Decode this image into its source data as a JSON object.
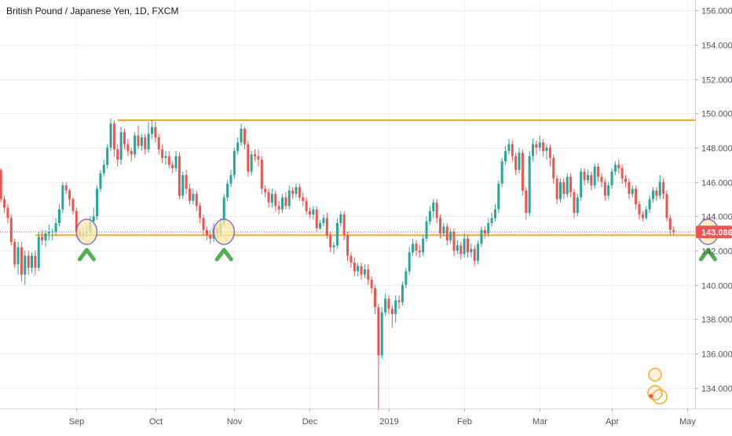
{
  "title": "British Pound / Japanese Yen, 1D, FXCM",
  "colors": {
    "up": "#26a69a",
    "down": "#ef5350",
    "level": "#f5a623",
    "price_line": "#ef5350",
    "grid": "#eef0f3",
    "axis_text": "#50535e",
    "marker": "#4caf50",
    "circle_fill": "#fce8a6",
    "circle_stroke": "#7b6fd0"
  },
  "last_price_label": "143.086",
  "chart_data": {
    "type": "candlestick",
    "title": "British Pound / Japanese Yen, 1D, FXCM",
    "ylim": [
      132.8,
      156.6
    ],
    "y_ticks": [
      "134.000",
      "136.000",
      "138.000",
      "140.000",
      "142.000",
      "144.000",
      "146.000",
      "148.000",
      "150.000",
      "152.000",
      "154.000",
      "156.000"
    ],
    "y_tick_values": [
      134,
      136,
      138,
      140,
      142,
      144,
      146,
      148,
      150,
      152,
      154,
      156
    ],
    "x_ticks": [
      "Sep",
      "Oct",
      "Nov",
      "Dec",
      "2019",
      "Feb",
      "Mar",
      "Apr",
      "May"
    ],
    "x_tick_days": [
      22,
      45,
      68,
      90,
      113,
      135,
      157,
      178,
      200
    ],
    "grid": true,
    "last_price": 143.086,
    "levels": [
      {
        "name": "resistance",
        "value": 149.6,
        "from_day": 34
      },
      {
        "name": "support",
        "value": 142.9,
        "from_day": 10
      }
    ],
    "touch_points": [
      {
        "day": 25,
        "price": 143.0
      },
      {
        "day": 65,
        "price": 143.0
      },
      {
        "day": 206,
        "price": 143.0
      }
    ],
    "candles": [
      [
        146.7,
        145.0,
        146.8,
        144.8
      ],
      [
        145.0,
        144.5,
        145.2,
        144.2
      ],
      [
        144.5,
        143.9,
        144.7,
        143.6
      ],
      [
        143.9,
        142.5,
        144.1,
        142.3
      ],
      [
        142.5,
        141.2,
        142.7,
        141.0
      ],
      [
        141.2,
        142.2,
        142.5,
        140.6
      ],
      [
        142.2,
        140.6,
        142.5,
        140.2
      ],
      [
        140.6,
        141.7,
        142.0,
        140.0
      ],
      [
        141.7,
        141.0,
        142.0,
        140.6
      ],
      [
        141.0,
        141.7,
        141.9,
        140.7
      ],
      [
        141.7,
        141.0,
        142.0,
        140.6
      ],
      [
        141.0,
        142.8,
        143.1,
        140.8
      ],
      [
        142.8,
        142.6,
        143.2,
        142.3
      ],
      [
        142.6,
        143.0,
        143.2,
        142.2
      ],
      [
        143.0,
        143.1,
        143.5,
        142.6
      ],
      [
        143.1,
        143.1,
        143.3,
        142.6
      ],
      [
        143.1,
        143.6,
        143.9,
        142.9
      ],
      [
        143.6,
        144.4,
        144.7,
        143.4
      ],
      [
        144.4,
        145.8,
        146.0,
        144.2
      ],
      [
        145.8,
        145.5,
        146.0,
        145.3
      ],
      [
        145.5,
        145.0,
        145.6,
        144.6
      ],
      [
        145.0,
        144.3,
        145.1,
        144.1
      ],
      [
        144.3,
        143.1,
        144.5,
        142.8
      ],
      [
        143.1,
        142.9,
        143.3,
        142.6
      ],
      [
        142.9,
        143.0,
        143.3,
        142.6
      ],
      [
        143.0,
        143.1,
        143.5,
        142.8
      ],
      [
        143.1,
        143.7,
        144.0,
        142.9
      ],
      [
        143.7,
        144.0,
        144.5,
        143.5
      ],
      [
        144.0,
        145.6,
        145.8,
        143.8
      ],
      [
        145.6,
        146.5,
        146.7,
        145.4
      ],
      [
        146.5,
        147.0,
        147.3,
        146.3
      ],
      [
        147.0,
        148.0,
        148.2,
        146.8
      ],
      [
        148.0,
        149.4,
        149.7,
        147.8
      ],
      [
        149.4,
        147.9,
        149.6,
        147.5
      ],
      [
        147.9,
        147.3,
        148.2,
        146.9
      ],
      [
        147.3,
        148.9,
        149.2,
        147.0
      ],
      [
        148.9,
        148.2,
        149.1,
        147.9
      ],
      [
        148.2,
        147.8,
        148.5,
        147.5
      ],
      [
        147.8,
        147.6,
        148.0,
        147.2
      ],
      [
        147.6,
        148.7,
        148.9,
        147.4
      ],
      [
        148.7,
        148.1,
        149.3,
        147.9
      ],
      [
        148.1,
        148.6,
        148.8,
        147.8
      ],
      [
        148.6,
        147.9,
        148.8,
        147.6
      ],
      [
        147.9,
        148.8,
        149.5,
        147.7
      ],
      [
        148.8,
        149.2,
        149.6,
        148.5
      ],
      [
        149.2,
        148.6,
        149.5,
        148.3
      ],
      [
        148.6,
        147.9,
        148.8,
        147.6
      ],
      [
        147.9,
        147.4,
        148.2,
        147.1
      ],
      [
        147.4,
        147.5,
        147.8,
        147.0
      ],
      [
        147.5,
        147.0,
        147.8,
        146.8
      ],
      [
        147.0,
        146.8,
        147.2,
        146.5
      ],
      [
        146.8,
        147.5,
        147.8,
        146.6
      ],
      [
        147.5,
        145.2,
        147.7,
        145.0
      ],
      [
        145.2,
        146.4,
        146.6,
        145.0
      ],
      [
        146.4,
        145.6,
        146.7,
        145.3
      ],
      [
        145.6,
        144.9,
        145.9,
        144.7
      ],
      [
        144.9,
        145.3,
        145.6,
        144.7
      ],
      [
        145.3,
        144.6,
        145.5,
        144.3
      ],
      [
        144.6,
        143.9,
        144.8,
        143.6
      ],
      [
        143.9,
        143.2,
        144.1,
        142.9
      ],
      [
        143.2,
        142.9,
        143.4,
        142.6
      ],
      [
        142.9,
        142.7,
        143.2,
        142.4
      ],
      [
        142.7,
        143.3,
        143.6,
        142.5
      ],
      [
        143.3,
        143.0,
        143.5,
        142.7
      ],
      [
        143.0,
        143.6,
        143.9,
        142.8
      ],
      [
        143.6,
        145.1,
        145.3,
        143.4
      ],
      [
        145.1,
        145.9,
        146.1,
        144.9
      ],
      [
        145.9,
        146.4,
        146.7,
        145.7
      ],
      [
        146.4,
        147.8,
        148.0,
        146.2
      ],
      [
        147.8,
        148.3,
        148.6,
        147.6
      ],
      [
        148.3,
        149.1,
        149.4,
        148.1
      ],
      [
        149.1,
        148.2,
        149.2,
        147.9
      ],
      [
        148.2,
        146.6,
        148.4,
        146.3
      ],
      [
        146.6,
        147.6,
        147.8,
        146.4
      ],
      [
        147.6,
        147.5,
        147.9,
        147.2
      ],
      [
        147.5,
        147.3,
        147.9,
        146.9
      ],
      [
        147.3,
        145.6,
        147.5,
        145.3
      ],
      [
        145.6,
        145.4,
        145.8,
        145.1
      ],
      [
        145.4,
        144.8,
        145.6,
        144.5
      ],
      [
        144.8,
        145.3,
        145.6,
        144.5
      ],
      [
        145.3,
        144.6,
        145.5,
        144.3
      ],
      [
        144.6,
        144.4,
        144.9,
        144.1
      ],
      [
        144.4,
        145.1,
        145.3,
        144.2
      ],
      [
        145.1,
        144.6,
        145.4,
        144.4
      ],
      [
        144.6,
        145.5,
        145.8,
        144.4
      ],
      [
        145.5,
        145.3,
        145.7,
        145.0
      ],
      [
        145.3,
        145.7,
        145.9,
        145.1
      ],
      [
        145.7,
        145.1,
        145.9,
        144.9
      ],
      [
        145.1,
        144.9,
        145.4,
        144.6
      ],
      [
        144.9,
        144.3,
        145.1,
        144.1
      ],
      [
        144.3,
        144.1,
        144.5,
        143.9
      ],
      [
        144.1,
        144.4,
        144.6,
        143.8
      ],
      [
        144.4,
        143.3,
        144.6,
        143.1
      ],
      [
        143.3,
        143.6,
        143.8,
        143.2
      ],
      [
        143.6,
        143.9,
        144.1,
        143.4
      ],
      [
        143.9,
        142.9,
        144.2,
        142.7
      ],
      [
        142.9,
        142.2,
        143.1,
        141.9
      ],
      [
        142.2,
        142.3,
        142.5,
        141.8
      ],
      [
        142.3,
        143.6,
        143.9,
        142.1
      ],
      [
        143.6,
        144.1,
        144.3,
        143.4
      ],
      [
        144.1,
        142.9,
        144.3,
        142.6
      ],
      [
        142.9,
        141.7,
        143.1,
        141.4
      ],
      [
        141.7,
        141.3,
        141.9,
        141.0
      ],
      [
        141.3,
        140.8,
        141.6,
        140.5
      ],
      [
        140.8,
        141.1,
        141.3,
        140.5
      ],
      [
        141.1,
        140.6,
        141.3,
        140.3
      ],
      [
        140.6,
        140.9,
        141.2,
        140.4
      ],
      [
        140.9,
        140.3,
        141.2,
        140.0
      ],
      [
        140.3,
        139.8,
        140.5,
        139.5
      ],
      [
        139.8,
        138.7,
        140.0,
        138.3
      ],
      [
        138.7,
        135.9,
        138.9,
        132.7
      ],
      [
        135.9,
        138.4,
        138.7,
        135.7
      ],
      [
        138.4,
        139.2,
        139.5,
        138.2
      ],
      [
        139.2,
        138.6,
        139.4,
        138.3
      ],
      [
        138.6,
        138.3,
        138.8,
        137.5
      ],
      [
        138.3,
        139.1,
        139.4,
        137.8
      ],
      [
        139.1,
        139.0,
        139.4,
        138.6
      ],
      [
        139.0,
        140.0,
        140.2,
        138.8
      ],
      [
        140.0,
        140.8,
        141.0,
        139.8
      ],
      [
        140.8,
        141.9,
        142.2,
        140.6
      ],
      [
        141.9,
        142.4,
        142.7,
        141.7
      ],
      [
        142.4,
        142.0,
        142.6,
        141.7
      ],
      [
        142.0,
        141.9,
        142.3,
        141.6
      ],
      [
        141.9,
        142.7,
        142.9,
        141.7
      ],
      [
        142.7,
        143.7,
        144.0,
        142.5
      ],
      [
        143.7,
        144.3,
        144.6,
        143.5
      ],
      [
        144.3,
        144.8,
        145.0,
        143.9
      ],
      [
        144.8,
        143.9,
        145.0,
        143.6
      ],
      [
        143.9,
        143.0,
        144.1,
        142.7
      ],
      [
        143.0,
        143.4,
        143.6,
        142.8
      ],
      [
        143.4,
        142.6,
        143.6,
        142.3
      ],
      [
        142.6,
        143.1,
        143.3,
        142.4
      ],
      [
        143.1,
        142.0,
        143.3,
        141.7
      ],
      [
        142.0,
        142.3,
        142.6,
        141.8
      ],
      [
        142.3,
        141.8,
        142.5,
        141.5
      ],
      [
        141.8,
        142.7,
        143.0,
        141.6
      ],
      [
        142.7,
        141.9,
        142.9,
        141.6
      ],
      [
        141.9,
        142.1,
        142.4,
        141.6
      ],
      [
        142.1,
        141.4,
        142.3,
        141.1
      ],
      [
        141.4,
        142.4,
        142.6,
        141.2
      ],
      [
        142.4,
        143.2,
        143.4,
        142.2
      ],
      [
        143.2,
        143.0,
        143.4,
        142.7
      ],
      [
        143.0,
        143.6,
        143.9,
        142.8
      ],
      [
        143.6,
        143.9,
        144.2,
        143.4
      ],
      [
        143.9,
        144.4,
        144.7,
        143.7
      ],
      [
        144.4,
        145.9,
        146.1,
        144.2
      ],
      [
        145.9,
        147.2,
        147.4,
        145.7
      ],
      [
        147.2,
        147.8,
        148.1,
        147.0
      ],
      [
        147.8,
        148.2,
        148.5,
        147.6
      ],
      [
        148.2,
        147.5,
        148.4,
        147.2
      ],
      [
        147.5,
        146.7,
        147.7,
        146.4
      ],
      [
        146.7,
        147.7,
        148.0,
        146.5
      ],
      [
        147.7,
        145.5,
        147.9,
        145.2
      ],
      [
        145.5,
        144.2,
        145.7,
        143.8
      ],
      [
        144.2,
        147.5,
        147.8,
        144.0
      ],
      [
        147.5,
        148.2,
        148.5,
        147.2
      ],
      [
        148.2,
        148.0,
        148.4,
        147.6
      ],
      [
        148.0,
        148.3,
        148.7,
        147.8
      ],
      [
        148.3,
        147.8,
        148.5,
        147.5
      ],
      [
        147.8,
        148.0,
        148.2,
        147.3
      ],
      [
        148.0,
        147.4,
        148.2,
        146.9
      ],
      [
        147.4,
        146.2,
        147.6,
        145.9
      ],
      [
        146.2,
        145.0,
        146.4,
        144.7
      ],
      [
        145.0,
        146.0,
        146.2,
        144.8
      ],
      [
        146.0,
        145.3,
        146.2,
        145.0
      ],
      [
        145.3,
        146.3,
        146.5,
        145.1
      ],
      [
        146.3,
        145.4,
        146.5,
        145.1
      ],
      [
        145.4,
        144.2,
        145.6,
        143.9
      ],
      [
        144.2,
        145.1,
        145.3,
        144.0
      ],
      [
        145.1,
        146.6,
        146.8,
        144.9
      ],
      [
        146.6,
        146.1,
        146.8,
        145.8
      ],
      [
        146.1,
        146.4,
        146.7,
        145.9
      ],
      [
        146.4,
        145.8,
        146.6,
        145.5
      ],
      [
        145.8,
        146.9,
        147.1,
        145.6
      ],
      [
        146.9,
        146.3,
        147.1,
        146.0
      ],
      [
        146.3,
        146.0,
        146.5,
        145.7
      ],
      [
        146.0,
        145.2,
        146.2,
        144.9
      ],
      [
        145.2,
        145.8,
        146.0,
        145.0
      ],
      [
        145.8,
        146.6,
        146.8,
        145.6
      ],
      [
        146.6,
        147.0,
        147.2,
        146.4
      ],
      [
        147.0,
        146.8,
        147.3,
        146.5
      ],
      [
        146.8,
        146.2,
        147.0,
        145.9
      ],
      [
        146.2,
        146.0,
        146.4,
        145.7
      ],
      [
        146.0,
        145.3,
        146.2,
        145.0
      ],
      [
        145.3,
        145.6,
        145.8,
        145.1
      ],
      [
        145.6,
        144.7,
        145.8,
        144.4
      ],
      [
        144.7,
        144.1,
        144.9,
        143.8
      ],
      [
        144.1,
        143.9,
        144.3,
        143.7
      ],
      [
        143.9,
        144.4,
        144.6,
        143.8
      ],
      [
        144.4,
        145.0,
        145.2,
        144.2
      ],
      [
        145.0,
        145.5,
        145.7,
        144.8
      ],
      [
        145.5,
        145.2,
        145.7,
        144.9
      ],
      [
        145.2,
        146.0,
        146.4,
        145.0
      ],
      [
        146.0,
        145.3,
        146.2,
        145.0
      ],
      [
        145.3,
        143.9,
        145.5,
        143.7
      ],
      [
        143.9,
        143.2,
        144.1,
        142.9
      ],
      [
        143.2,
        143.086,
        143.4,
        142.9
      ]
    ]
  }
}
